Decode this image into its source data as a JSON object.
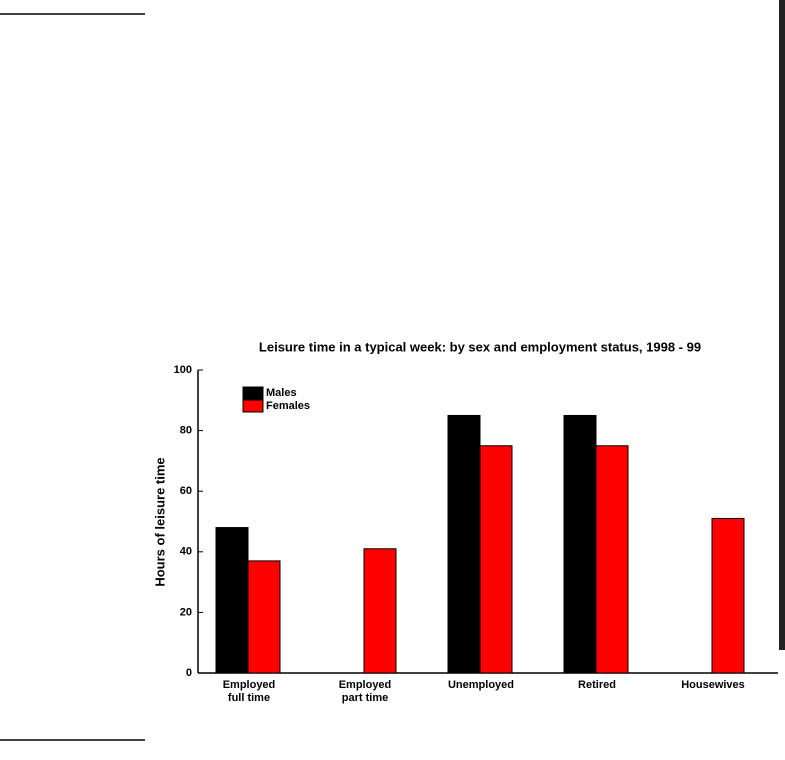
{
  "chart_data": {
    "type": "bar",
    "title": "Leisure time in a typical week: by sex and employment status, 1998 - 99",
    "y_label": "Hours of leisure time",
    "categories": [
      "Employed\nfull time",
      "Employed\npart time",
      "Unemployed",
      "Retired",
      "Housewives"
    ],
    "series": [
      {
        "name": "Males",
        "color": "#000000",
        "values": [
          48,
          null,
          85,
          85,
          null
        ]
      },
      {
        "name": "Females",
        "color": "#ff0000",
        "values": [
          37,
          41,
          75,
          75,
          51
        ]
      }
    ],
    "ylim": [
      0,
      100
    ],
    "yticks": [
      0,
      20,
      40,
      60,
      80,
      100
    ],
    "grid": false,
    "legend": "upper left"
  }
}
